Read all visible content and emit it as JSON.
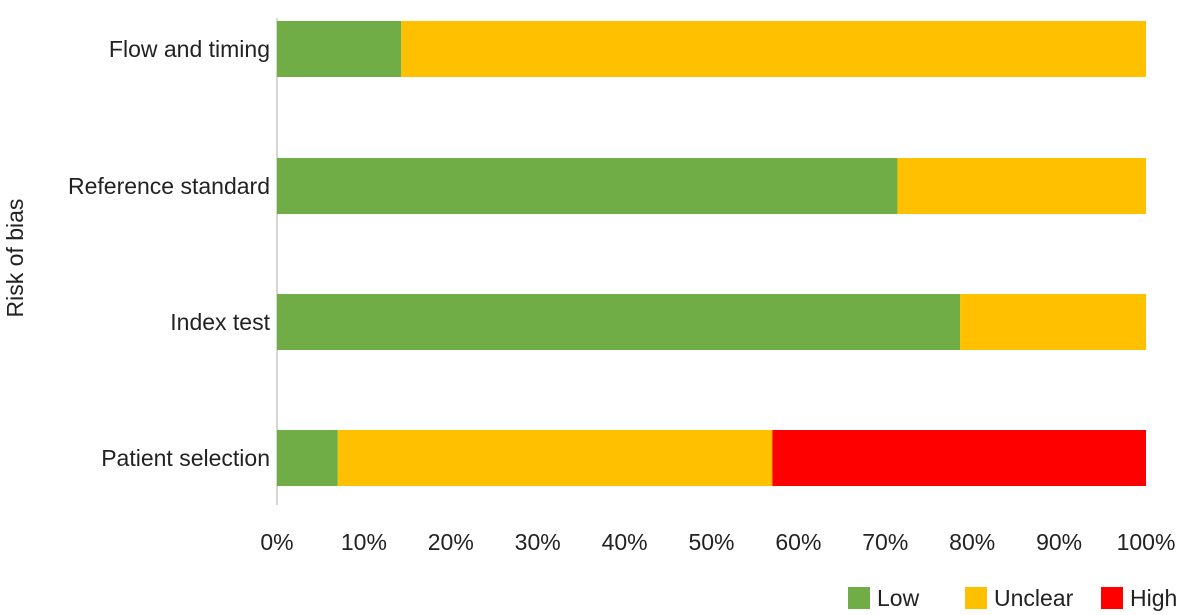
{
  "chart_data": {
    "type": "bar",
    "orientation": "horizontal",
    "stacked": true,
    "categories": [
      "Patient selection",
      "Index test",
      "Reference standard",
      "Flow and timing"
    ],
    "series": [
      {
        "name": "Low",
        "color": "#70ad47",
        "values": [
          7,
          78.6,
          71.4,
          14.3
        ]
      },
      {
        "name": "Unclear",
        "color": "#ffc000",
        "values": [
          50,
          21.4,
          28.6,
          85.7
        ]
      },
      {
        "name": "High",
        "color": "#ff0000",
        "values": [
          43,
          0,
          0,
          0
        ]
      }
    ],
    "ylabel": "Risk of bias",
    "xlabel": "",
    "xlim": [
      0,
      100
    ],
    "x_ticks": [
      "0%",
      "10%",
      "20%",
      "30%",
      "40%",
      "50%",
      "60%",
      "70%",
      "80%",
      "90%",
      "100%"
    ],
    "grid": false,
    "legend": "bottom-right"
  }
}
